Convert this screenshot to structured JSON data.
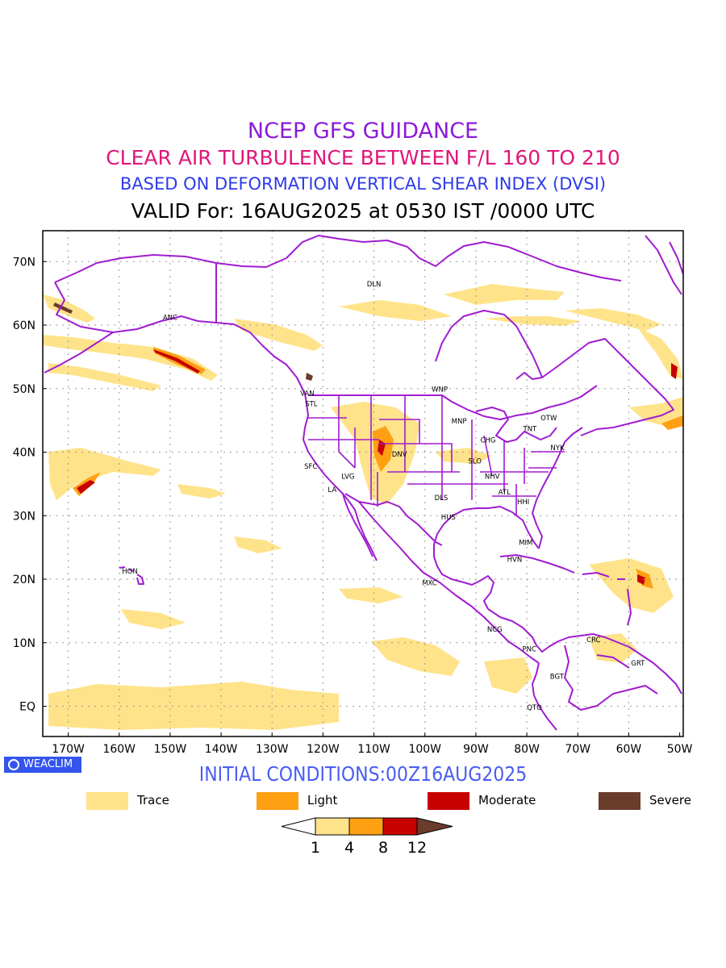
{
  "header": {
    "title": "NCEP GFS GUIDANCE",
    "subtitle": "CLEAR AIR TURBULENCE BETWEEN F/L 160 TO 210",
    "method": "BASED ON DEFORMATION VERTICAL SHEAR INDEX (DVSI)",
    "valid": "VALID For: 16AUG2025 at 0530 IST /0000 UTC"
  },
  "colors": {
    "title": "#8a1bd8",
    "subtitle": "#e0177a",
    "method": "#2d3be8",
    "valid": "#000000",
    "boundary": "#a01cd0",
    "init": "#4a5ef0",
    "trace": "#ffe38a",
    "light": "#ff9f12",
    "moderate": "#c80000",
    "severe": "#6b3b2c"
  },
  "map": {
    "lat_ticks": [
      "70N",
      "60N",
      "50N",
      "40N",
      "30N",
      "20N",
      "10N",
      "EQ"
    ],
    "lon_ticks": [
      "170W",
      "160W",
      "150W",
      "140W",
      "130W",
      "120W",
      "110W",
      "100W",
      "90W",
      "80W",
      "70W",
      "60W",
      "50W"
    ],
    "stations": [
      {
        "code": "DLN",
        "lon": -110.0,
        "lat": 66.5
      },
      {
        "code": "ANC",
        "lon": -150.0,
        "lat": 61.2
      },
      {
        "code": "VAN",
        "lon": -123.1,
        "lat": 49.3
      },
      {
        "code": "STL",
        "lon": -122.3,
        "lat": 47.6
      },
      {
        "code": "WNP",
        "lon": -97.1,
        "lat": 49.9
      },
      {
        "code": "MNP",
        "lon": -93.3,
        "lat": 44.9
      },
      {
        "code": "TNT",
        "lon": -79.4,
        "lat": 43.7
      },
      {
        "code": "OTW",
        "lon": -75.7,
        "lat": 45.4
      },
      {
        "code": "CHG",
        "lon": -87.6,
        "lat": 41.9
      },
      {
        "code": "NYK",
        "lon": -74.0,
        "lat": 40.7
      },
      {
        "code": "DNV",
        "lon": -105.0,
        "lat": 39.7
      },
      {
        "code": "SFC",
        "lon": -122.4,
        "lat": 37.8
      },
      {
        "code": "LVG",
        "lon": -115.1,
        "lat": 36.2
      },
      {
        "code": "SLO",
        "lon": -90.2,
        "lat": 38.6
      },
      {
        "code": "NHV",
        "lon": -86.8,
        "lat": 36.2
      },
      {
        "code": "LA",
        "lon": -118.2,
        "lat": 34.1
      },
      {
        "code": "ATL",
        "lon": -84.4,
        "lat": 33.7
      },
      {
        "code": "DLS",
        "lon": -96.8,
        "lat": 32.8
      },
      {
        "code": "HHI",
        "lon": -80.7,
        "lat": 32.2
      },
      {
        "code": "HUS",
        "lon": -95.4,
        "lat": 29.8
      },
      {
        "code": "MIM",
        "lon": -80.2,
        "lat": 25.8
      },
      {
        "code": "HVN",
        "lon": -82.4,
        "lat": 23.1
      },
      {
        "code": "HON",
        "lon": -157.9,
        "lat": 21.3
      },
      {
        "code": "MXC",
        "lon": -99.1,
        "lat": 19.4
      },
      {
        "code": "NCG",
        "lon": -86.3,
        "lat": 12.1
      },
      {
        "code": "CRC",
        "lon": -66.9,
        "lat": 10.5
      },
      {
        "code": "PNC",
        "lon": -79.5,
        "lat": 9.0
      },
      {
        "code": "GRT",
        "lon": -58.2,
        "lat": 6.8
      },
      {
        "code": "BGT",
        "lon": -74.1,
        "lat": 4.7
      },
      {
        "code": "QTO",
        "lon": -78.5,
        "lat": -0.2
      }
    ]
  },
  "footer": {
    "badge": "WEACLIM",
    "initial_conditions": "INITIAL CONDITIONS:00Z16AUG2025"
  },
  "legend": [
    {
      "label": "Trace",
      "color": "#ffe38a"
    },
    {
      "label": "Light",
      "color": "#ff9f12"
    },
    {
      "label": "Moderate",
      "color": "#c80000"
    },
    {
      "label": "Severe",
      "color": "#6b3b2c"
    }
  ],
  "colorbar": {
    "levels": [
      "1",
      "4",
      "8",
      "12"
    ],
    "colors": [
      "#ffe38a",
      "#ff9f12",
      "#c80000"
    ],
    "low_color": "#ffffff",
    "high_color": "#6b3b2c"
  }
}
